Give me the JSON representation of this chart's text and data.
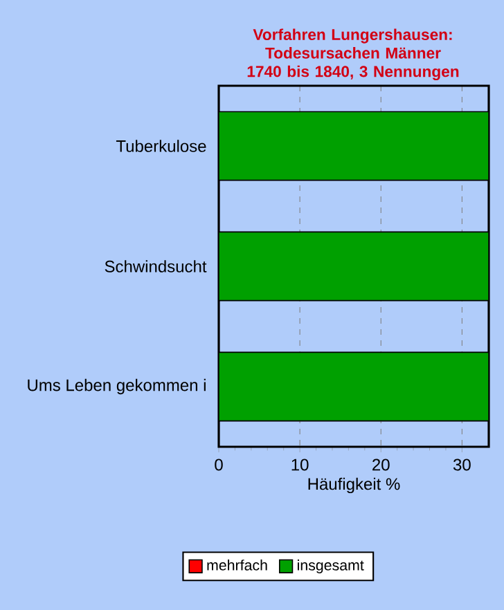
{
  "chart_data": {
    "type": "bar",
    "orientation": "horizontal",
    "title": "Vorfahren Lungershausen:\nTodesursachen Männer\n1740 bis 1840, 3 Nennungen",
    "xlabel": "Häufigkeit %",
    "categories": [
      "Tuberkulose",
      "Schwindsucht",
      "Ums Leben gekommen i"
    ],
    "series": [
      {
        "name": "mehrfach",
        "color": "#ff0000",
        "values": [
          null,
          null,
          null
        ]
      },
      {
        "name": "insgesamt",
        "color": "#00a000",
        "values": [
          33.3,
          33.3,
          33.3
        ]
      }
    ],
    "xlim": [
      0,
      33.3
    ],
    "xticks": [
      0,
      10,
      20,
      30
    ],
    "grid": "x",
    "legend": "bottom"
  }
}
